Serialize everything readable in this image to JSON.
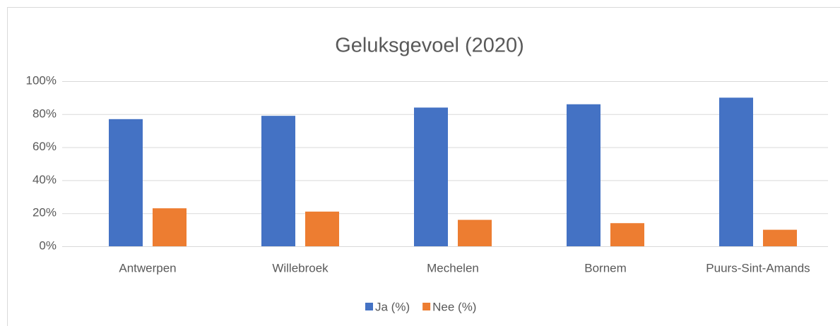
{
  "chart_data": {
    "type": "bar",
    "title": "Geluksgevoel (2020)",
    "categories": [
      "Antwerpen",
      "Willebroek",
      "Mechelen",
      "Bornem",
      "Puurs-Sint-Amands"
    ],
    "series": [
      {
        "name": "Ja (%)",
        "color": "#4472c4",
        "values": [
          77,
          79,
          84,
          86,
          90
        ]
      },
      {
        "name": "Nee (%)",
        "color": "#ed7d31",
        "values": [
          23,
          21,
          16,
          14,
          10
        ]
      }
    ],
    "ylim": [
      0,
      100
    ],
    "yticks": [
      {
        "value": 0,
        "label": "0%"
      },
      {
        "value": 20,
        "label": "20%"
      },
      {
        "value": 40,
        "label": "40%"
      },
      {
        "value": 60,
        "label": "60%"
      },
      {
        "value": 80,
        "label": "80%"
      },
      {
        "value": 100,
        "label": "100%"
      }
    ],
    "grid": true,
    "legend": "bottom"
  }
}
